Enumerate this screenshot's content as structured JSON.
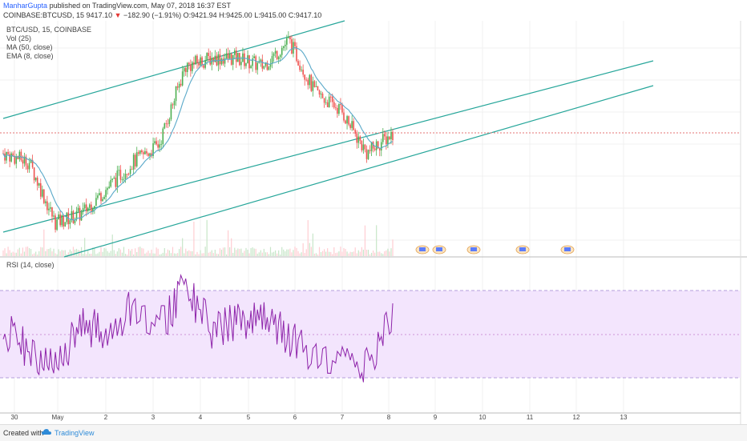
{
  "header": {
    "user": "ManharGupta",
    "published": "published on TradingView.com, May 07, 2018 16:37 EST",
    "symbol": "COINBASE:BTCUSD, 15",
    "last": "9417.10",
    "change": "−182.90 (−1.91%)",
    "ohlc": "O:9421.94 H:9425.00 L:9415.00 C:9417.10"
  },
  "labels": {
    "title": "BTC/USD, 15, COINBASE",
    "vol": "Vol (25)",
    "ma": "MA (50, close)",
    "ema": "EMA (8, close)",
    "rsi": "RSI (14, close)"
  },
  "footer": {
    "created": "Created with",
    "brand": "TradingView"
  },
  "colors": {
    "candle_up": "#4caf50",
    "candle_down": "#ef5350",
    "channel": "#26a69a",
    "ma": "#5aa9c9",
    "ema": "#f2a14b",
    "rsi": "#8e24aa",
    "rsi_band": "#f3e5fd",
    "price_line": "#e57373"
  },
  "chart_data": {
    "type": "line",
    "xaxis": {
      "ticks": [
        "30",
        "May",
        "2",
        "3",
        "4",
        "5",
        "6",
        "7",
        "8",
        "9",
        "10",
        "11",
        "12",
        "13"
      ]
    },
    "price_series": {
      "name": "BTC/USD",
      "x": [
        "Apr 30",
        "May 1 06:00",
        "May 1 12:00",
        "May 2",
        "May 2 12:00",
        "May 3",
        "May 3 12:00",
        "May 4",
        "May 4 12:00",
        "May 5",
        "May 5 12:00",
        "May 6",
        "May 6 12:00",
        "May 7",
        "May 7 12:00",
        "May 8"
      ],
      "y": [
        9300,
        9250,
        8900,
        8950,
        9100,
        9250,
        9350,
        9800,
        9850,
        9850,
        9800,
        9950,
        9650,
        9550,
        9300,
        9417
      ]
    },
    "rsi_series": {
      "name": "RSI (14, close)",
      "x": [
        "Apr 30",
        "May 1 06:00",
        "May 1 12:00",
        "May 2",
        "May 2 12:00",
        "May 3",
        "May 3 12:00",
        "May 4",
        "May 4 12:00",
        "May 5",
        "May 5 12:00",
        "May 6",
        "May 6 12:00",
        "May 7",
        "May 7 12:00",
        "May 8"
      ],
      "y": [
        55,
        40,
        25,
        60,
        50,
        70,
        55,
        85,
        55,
        60,
        65,
        50,
        35,
        40,
        30,
        65
      ],
      "band": [
        30,
        70
      ]
    },
    "annotations": [
      "channel lines (3 parallel trend lines)",
      "horizontal last-price line"
    ],
    "grid": true
  }
}
